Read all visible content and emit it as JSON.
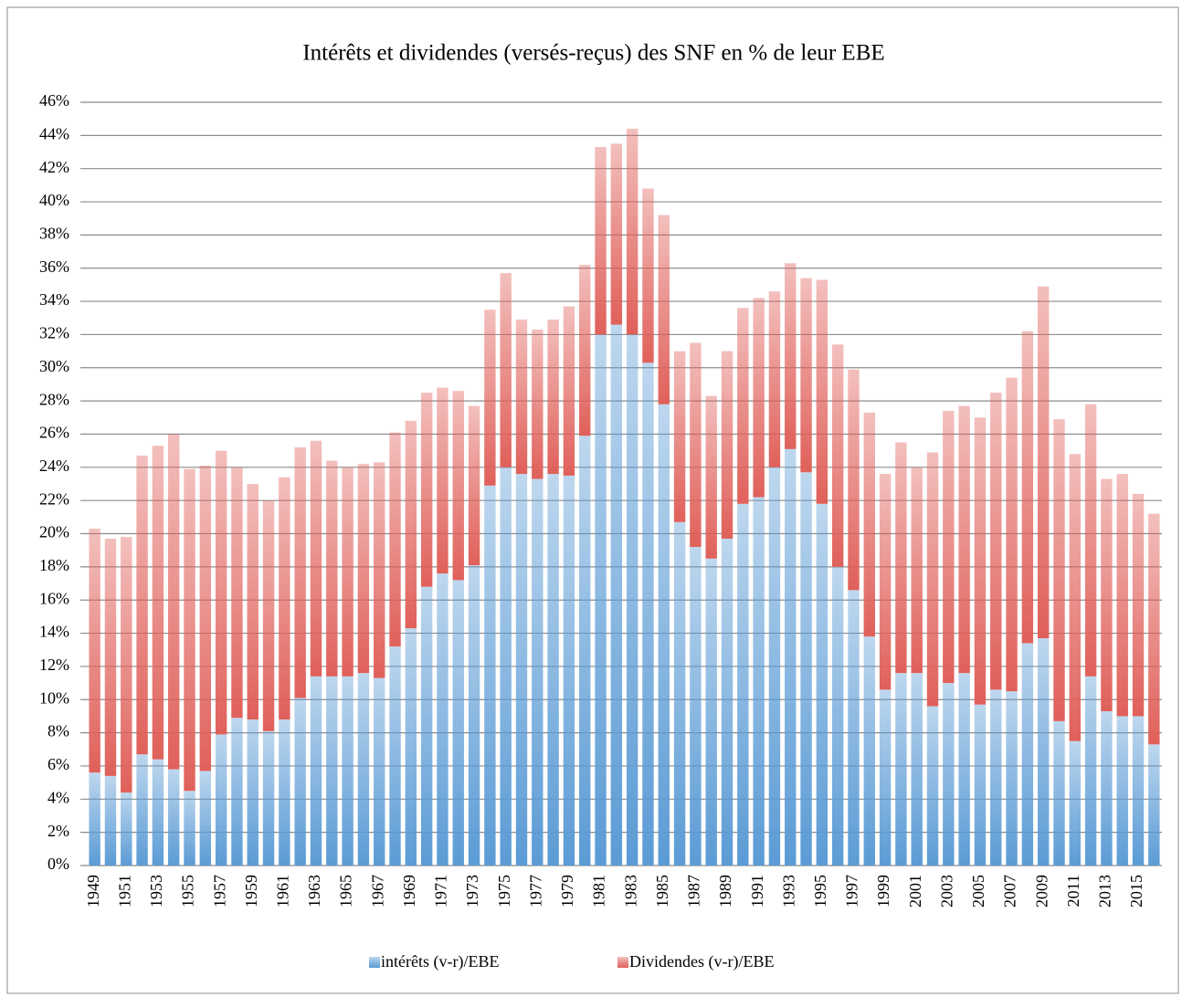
{
  "chart_data": {
    "type": "stacked_bar",
    "title": "Intérêts et dividendes (versés-reçus) des SNF en % de leur EBE",
    "categories": [
      "1949",
      null,
      "1951",
      null,
      "1953",
      null,
      "1955",
      null,
      "1957",
      null,
      "1959",
      null,
      "1961",
      null,
      "1963",
      null,
      "1965",
      null,
      "1967",
      null,
      "1969",
      null,
      "1971",
      null,
      "1973",
      null,
      "1975",
      null,
      "1977",
      null,
      "1979",
      null,
      "1981",
      null,
      "1983",
      null,
      "1985",
      null,
      "1987",
      null,
      "1989",
      null,
      "1991",
      null,
      "1993",
      null,
      "1995",
      null,
      "1997",
      null,
      "1999",
      null,
      "2001",
      null,
      "2003",
      null,
      "2005",
      null,
      "2007",
      null,
      "2009",
      null,
      "2011",
      null,
      "2013",
      null,
      "2015",
      null
    ],
    "series": [
      {
        "name": "intérêts (v-r)/EBE",
        "color": "#5b9bd5",
        "values": [
          5.6,
          5.4,
          4.4,
          6.7,
          6.4,
          5.8,
          4.5,
          5.7,
          7.9,
          8.9,
          8.8,
          8.1,
          8.8,
          10.1,
          11.4,
          11.4,
          11.4,
          11.6,
          11.3,
          13.2,
          14.3,
          16.8,
          17.6,
          17.2,
          18.1,
          22.9,
          24.0,
          23.6,
          23.3,
          23.6,
          23.5,
          25.9,
          32.0,
          32.6,
          32.0,
          30.3,
          27.8,
          20.7,
          19.2,
          18.5,
          19.7,
          21.8,
          22.2,
          24.0,
          25.1,
          23.7,
          21.8,
          18.0,
          16.6,
          13.8,
          10.6,
          11.6,
          11.6,
          9.6,
          11.0,
          11.6,
          9.7,
          10.6,
          10.5,
          13.4,
          13.7,
          8.7,
          7.5,
          11.4,
          9.3,
          9.0,
          9.0,
          7.3
        ]
      },
      {
        "name": "Dividendes (v-r)/EBE",
        "color": "#e0605a",
        "values": [
          14.7,
          14.3,
          15.4,
          18.0,
          18.9,
          20.2,
          19.4,
          18.4,
          17.1,
          15.1,
          14.2,
          13.9,
          14.6,
          15.1,
          14.2,
          13.0,
          12.6,
          12.6,
          13.0,
          12.9,
          12.5,
          11.7,
          11.2,
          11.4,
          9.6,
          10.6,
          11.7,
          9.3,
          9.0,
          9.3,
          10.2,
          10.3,
          11.3,
          10.9,
          12.4,
          10.5,
          11.4,
          10.3,
          12.3,
          9.8,
          11.3,
          11.8,
          12.0,
          10.6,
          11.2,
          11.7,
          13.5,
          13.4,
          13.3,
          13.5,
          13.0,
          13.9,
          12.4,
          15.3,
          16.4,
          16.1,
          17.3,
          17.9,
          18.9,
          18.8,
          21.2,
          18.2,
          17.3,
          16.4,
          14.0,
          14.6,
          13.4,
          13.9
        ]
      }
    ],
    "ylim": [
      0,
      46
    ],
    "yticks": [
      {
        "value": 0,
        "label": "0%"
      },
      {
        "value": 2,
        "label": "2%"
      },
      {
        "value": 4,
        "label": "4%"
      },
      {
        "value": 6,
        "label": "6%"
      },
      {
        "value": 8,
        "label": "8%"
      },
      {
        "value": 10,
        "label": "10%"
      },
      {
        "value": 12,
        "label": "12%"
      },
      {
        "value": 14,
        "label": "14%"
      },
      {
        "value": 16,
        "label": "16%"
      },
      {
        "value": 18,
        "label": "18%"
      },
      {
        "value": 20,
        "label": "20%"
      },
      {
        "value": 22,
        "label": "22%"
      },
      {
        "value": 24,
        "label": "24%"
      },
      {
        "value": 26,
        "label": "26%"
      },
      {
        "value": 28,
        "label": "28%"
      },
      {
        "value": 30,
        "label": "30%"
      },
      {
        "value": 32,
        "label": "32%"
      },
      {
        "value": 34,
        "label": "34%"
      },
      {
        "value": 36,
        "label": "36%"
      },
      {
        "value": 38,
        "label": "38%"
      },
      {
        "value": 40,
        "label": "40%"
      },
      {
        "value": 42,
        "label": "42%"
      },
      {
        "value": 44,
        "label": "44%"
      },
      {
        "value": 46,
        "label": "46%"
      }
    ],
    "grid": true,
    "legend": "bottom"
  }
}
